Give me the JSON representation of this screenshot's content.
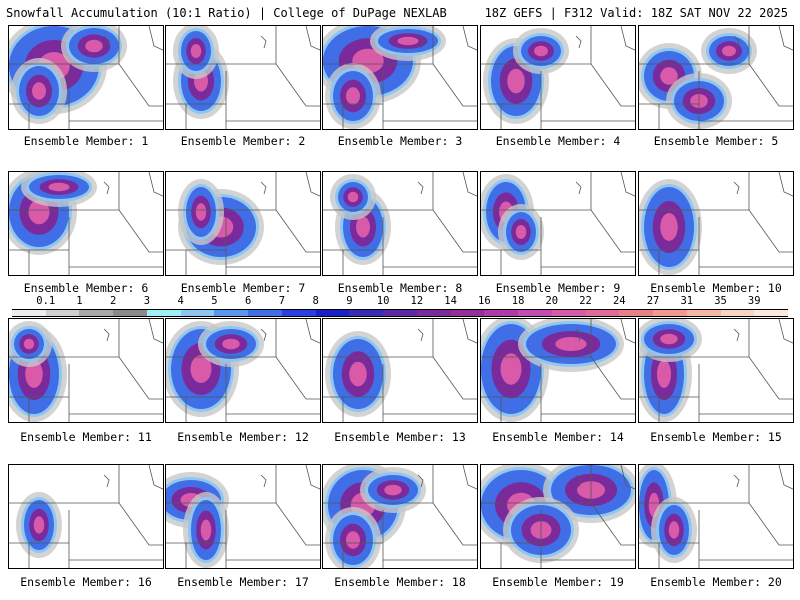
{
  "header": {
    "left": "Snowfall Accumulation (10:1 Ratio) | College of DuPage NEXLAB",
    "right": "18Z GEFS | F312 Valid: 18Z SAT NOV 22 2025"
  },
  "members": [
    {
      "label": "Ensemble Member: 1"
    },
    {
      "label": "Ensemble Member: 2"
    },
    {
      "label": "Ensemble Member: 3"
    },
    {
      "label": "Ensemble Member: 4"
    },
    {
      "label": "Ensemble Member: 5"
    },
    {
      "label": "Ensemble Member: 6"
    },
    {
      "label": "Ensemble Member: 7"
    },
    {
      "label": "Ensemble Member: 8"
    },
    {
      "label": "Ensemble Member: 9"
    },
    {
      "label": "Ensemble Member: 10"
    },
    {
      "label": "Ensemble Member: 11"
    },
    {
      "label": "Ensemble Member: 12"
    },
    {
      "label": "Ensemble Member: 13"
    },
    {
      "label": "Ensemble Member: 14"
    },
    {
      "label": "Ensemble Member: 15"
    },
    {
      "label": "Ensemble Member: 16"
    },
    {
      "label": "Ensemble Member: 17"
    },
    {
      "label": "Ensemble Member: 18"
    },
    {
      "label": "Ensemble Member: 19"
    },
    {
      "label": "Ensemble Member: 20"
    }
  ],
  "scale": {
    "labels": [
      "0.1",
      "1",
      "2",
      "3",
      "4",
      "5",
      "6",
      "7",
      "8",
      "9",
      "10",
      "12",
      "14",
      "16",
      "18",
      "20",
      "22",
      "24",
      "27",
      "31",
      "35",
      "39"
    ],
    "colors": [
      "#ededed",
      "#cfcfcf",
      "#a8a8a8",
      "#8a8a8a",
      "#9ff0f4",
      "#8fc7f2",
      "#5b95ee",
      "#3f6ee6",
      "#2a3fe0",
      "#1a20c8",
      "#3a2ab8",
      "#5a2aa6",
      "#7a2a9a",
      "#942e98",
      "#ad3aa8",
      "#c64ab4",
      "#d85aa8",
      "#e36a98",
      "#e8808a",
      "#f09a90",
      "#f5b6a8",
      "#f9d3c4",
      "#fbe8dc"
    ]
  }
}
